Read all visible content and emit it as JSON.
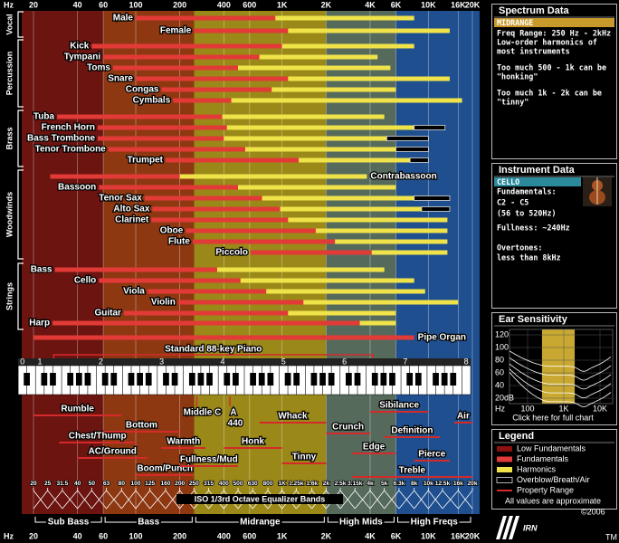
{
  "chart_data": {
    "type": "frequency-range",
    "x_unit": "Hz",
    "xlim": [
      20,
      20000
    ],
    "log_x": true,
    "grid": true,
    "xticks": [
      20,
      40,
      60,
      100,
      200,
      400,
      600,
      {
        "value": 1000,
        "label": "1K"
      },
      {
        "value": 2000,
        "label": "2K"
      },
      {
        "value": 4000,
        "label": "4K"
      },
      {
        "value": 6000,
        "label": "6K"
      },
      {
        "value": 10000,
        "label": "10K"
      },
      {
        "value": 16000,
        "label": "16K"
      },
      {
        "value": 20000,
        "label": "20K"
      }
    ],
    "zones": [
      {
        "name": "Sub Bass",
        "range": [
          20,
          60
        ],
        "color": "#6b1410"
      },
      {
        "name": "Bass",
        "range": [
          60,
          250
        ],
        "color": "#8e3812"
      },
      {
        "name": "Midrange",
        "range": [
          250,
          2000
        ],
        "color": "#9a8818"
      },
      {
        "name": "High Mids",
        "range": [
          2000,
          6000
        ],
        "color": "#566a5c"
      },
      {
        "name": "High Freqs",
        "range": [
          6000,
          20000
        ],
        "color": "#1f4f8f"
      }
    ],
    "groups": [
      {
        "name": "Vocal",
        "instruments": [
          {
            "name": "Male",
            "fundamentals": [
              100,
              900
            ],
            "harmonics": [
              900,
              8000
            ]
          },
          {
            "name": "Female",
            "fundamentals": [
              250,
              1100
            ],
            "harmonics": [
              1100,
              14000
            ]
          }
        ]
      },
      {
        "name": "Percussion",
        "instruments": [
          {
            "name": "Kick",
            "fundamentals": [
              50,
              1000
            ],
            "harmonics": [
              1000,
              8000
            ]
          },
          {
            "name": "Tympani",
            "fundamentals": [
              60,
              700
            ],
            "harmonics": [
              700,
              4500
            ]
          },
          {
            "name": "Toms",
            "fundamentals": [
              70,
              500
            ],
            "harmonics": [
              500,
              5500
            ]
          },
          {
            "name": "Snare",
            "fundamentals": [
              100,
              1100
            ],
            "harmonics": [
              1100,
              14000
            ]
          },
          {
            "name": "Congas",
            "fundamentals": [
              150,
              850
            ],
            "harmonics": [
              850,
              6000
            ]
          },
          {
            "name": "Cymbals",
            "fundamentals": [
              180,
              450
            ],
            "harmonics": [
              450,
              17000
            ]
          }
        ]
      },
      {
        "name": "Brass",
        "instruments": [
          {
            "name": "Tuba",
            "fundamentals": [
              29,
              390
            ],
            "harmonics": [
              390,
              5000
            ]
          },
          {
            "name": "French Horn",
            "fundamentals": [
              55,
              420
            ],
            "harmonics": [
              420,
              8000
            ],
            "overblow": [
              8000,
              13000
            ]
          },
          {
            "name": "Bass Trombone",
            "fundamentals": [
              55,
              400
            ],
            "harmonics": [
              400,
              5200
            ],
            "overblow": [
              5200,
              10000
            ]
          },
          {
            "name": "Tenor Trombone",
            "fundamentals": [
              65,
              560
            ],
            "harmonics": [
              560,
              6000
            ],
            "overblow": [
              6000,
              10000
            ]
          },
          {
            "name": "Trumpet",
            "fundamentals": [
              160,
              1300
            ],
            "harmonics": [
              1300,
              7500
            ],
            "overblow": [
              7500,
              10000
            ]
          }
        ]
      },
      {
        "name": "Woodwinds",
        "instruments": [
          {
            "name": "Contrabassoon",
            "fundamentals": [
              26,
              200
            ],
            "harmonics": [
              200,
              3800
            ],
            "label_side": "right"
          },
          {
            "name": "Bassoon",
            "fundamentals": [
              56,
              500
            ],
            "harmonics": [
              500,
              6000
            ]
          },
          {
            "name": "Tenor Sax",
            "fundamentals": [
              115,
              730
            ],
            "harmonics": [
              730,
              8000
            ],
            "overblow": [
              8000,
              14000
            ]
          },
          {
            "name": "Alto Sax",
            "fundamentals": [
              130,
              970
            ],
            "harmonics": [
              970,
              9000
            ],
            "overblow": [
              9000,
              14000
            ]
          },
          {
            "name": "Clarinet",
            "fundamentals": [
              128,
              1100
            ],
            "harmonics": [
              1100,
              13500
            ]
          },
          {
            "name": "Oboe",
            "fundamentals": [
              220,
              1700
            ],
            "harmonics": [
              1700,
              13500
            ]
          },
          {
            "name": "Flute",
            "fundamentals": [
              245,
              2300
            ],
            "harmonics": [
              2300,
              13500
            ]
          },
          {
            "name": "Piccolo",
            "fundamentals": [
              610,
              4100
            ],
            "harmonics": [
              4100,
              13500
            ]
          }
        ]
      },
      {
        "name": "Strings",
        "instruments": [
          {
            "name": "Bass",
            "fundamentals": [
              28,
              360
            ],
            "harmonics": [
              360,
              5000
            ]
          },
          {
            "name": "Cello",
            "fundamentals": [
              56,
              520
            ],
            "harmonics": [
              520,
              8000
            ]
          },
          {
            "name": "Viola",
            "fundamentals": [
              120,
              780
            ],
            "harmonics": [
              780,
              9500
            ]
          },
          {
            "name": "Violin",
            "fundamentals": [
              195,
              1400
            ],
            "harmonics": [
              1400,
              16000
            ]
          },
          {
            "name": "Guitar",
            "fundamentals": [
              83,
              1100
            ],
            "harmonics": [
              1100,
              6000
            ]
          },
          {
            "name": "Harp",
            "fundamentals": [
              27,
              3400
            ],
            "harmonics": [
              3400,
              6000
            ]
          }
        ]
      }
    ],
    "other_instruments": [
      {
        "name": "Pipe Organ",
        "fundamentals": [
          20,
          8000
        ],
        "label_side": "right"
      }
    ],
    "piano": {
      "name": "Standard 88-key Piano",
      "range": [
        27.5,
        4186
      ]
    },
    "keyboard": {
      "octaves": [
        "0",
        "1",
        "2",
        "3",
        "4",
        "5",
        "6",
        "7",
        "8"
      ],
      "notes": [
        "C",
        "D",
        "E",
        "F",
        "G",
        "A",
        "B"
      ]
    },
    "descriptors": [
      {
        "name": "Rumble",
        "range": [
          20,
          80
        ]
      },
      {
        "name": "Chest/Thump",
        "range": [
          30,
          100
        ]
      },
      {
        "name": "Bottom",
        "range": [
          60,
          200
        ]
      },
      {
        "name": "AC/Ground",
        "range": [
          40,
          120
        ]
      },
      {
        "name": "Warmth",
        "range": [
          150,
          300
        ]
      },
      {
        "name": "Boom/Punch",
        "range": [
          100,
          250
        ]
      },
      {
        "name": "Fullness/Mud",
        "range": [
          200,
          500
        ]
      },
      {
        "name": "Honk",
        "range": [
          400,
          1000
        ]
      },
      {
        "name": "Whack",
        "range": [
          700,
          2000
        ]
      },
      {
        "name": "Tinny",
        "range": [
          1000,
          2000
        ]
      },
      {
        "name": "Crunch",
        "range": [
          2000,
          4000
        ]
      },
      {
        "name": "Edge",
        "range": [
          3000,
          6000
        ]
      },
      {
        "name": "Sibilance",
        "range": [
          4000,
          10000
        ]
      },
      {
        "name": "Definition",
        "range": [
          5000,
          12000
        ]
      },
      {
        "name": "Pierce",
        "range": [
          8000,
          14000
        ]
      },
      {
        "name": "Treble",
        "range": [
          3000,
          20000
        ]
      },
      {
        "name": "Air",
        "range": [
          15000,
          20000
        ]
      }
    ],
    "markers": [
      {
        "name": "Middle C",
        "value": 261.6
      },
      {
        "name": "A",
        "value": 440
      }
    ],
    "eq_bands": {
      "title": "ISO 1/3rd Octave Equalizer Bands",
      "values": [
        20,
        25,
        31.5,
        40,
        50,
        63,
        80,
        100,
        125,
        160,
        200,
        250,
        315,
        400,
        500,
        630,
        800,
        {
          "value": 1000,
          "label": "1K"
        },
        {
          "value": 1250,
          "label": "1.25k"
        },
        {
          "value": 1600,
          "label": "1.6k"
        },
        {
          "value": 2000,
          "label": "2k"
        },
        {
          "value": 2500,
          "label": "2.5k"
        },
        {
          "value": 3150,
          "label": "3.15k"
        },
        {
          "value": 4000,
          "label": "4k"
        },
        {
          "value": 5000,
          "label": "5k"
        },
        {
          "value": 6300,
          "label": "6.3k"
        },
        {
          "value": 8000,
          "label": "8k"
        },
        {
          "value": 10000,
          "label": "10k"
        },
        {
          "value": 12500,
          "label": "12.5k"
        },
        {
          "value": 16000,
          "label": "16k"
        },
        {
          "value": 20000,
          "label": "20k"
        }
      ]
    },
    "legend": {
      "title": "Legend",
      "items": [
        {
          "name": "Low Fundamentals",
          "color": "#8b1010"
        },
        {
          "name": "Fundamentals",
          "color": "#e23a36"
        },
        {
          "name": "Harmonics",
          "color": "#f0e34a"
        },
        {
          "name": "Overblow/Breath/Air",
          "color": "#000000"
        },
        {
          "name": "Property Range",
          "color": "#d42a2a"
        }
      ],
      "note": "All values are approximate"
    }
  },
  "spectrum_data": {
    "title": "Spectrum Data",
    "header": "MIDRANGE",
    "lines": [
      "Freq Range: 250 Hz - 2kHz",
      "Low-order harmonics of",
      "most instruments",
      "Too much 500 - 1k can be",
      "\"honking\"",
      "Too much 1k - 2k can be",
      "\"tinny\""
    ]
  },
  "instrument_data": {
    "title": "Instrument Data",
    "header": "CELLO",
    "lines": [
      "Fundamentals:",
      "C2 - C5",
      "(56 to 520Hz)",
      "Fullness: ~240Hz",
      "Overtones:",
      "less than 8kHz"
    ]
  },
  "ear_sensitivity": {
    "title": "Ear Sensitivity",
    "x_unit": "Hz",
    "xticks": [
      100,
      {
        "value": 1000,
        "label": "1K"
      },
      {
        "value": 10000,
        "label": "10K"
      }
    ],
    "yticks": [
      120,
      100,
      80,
      60,
      40,
      {
        "value": 20,
        "label": "20dB"
      }
    ],
    "link": "Click here for full chart"
  },
  "logo": {
    "name": "IRN",
    "year": "©2006",
    "tm": "TM"
  }
}
